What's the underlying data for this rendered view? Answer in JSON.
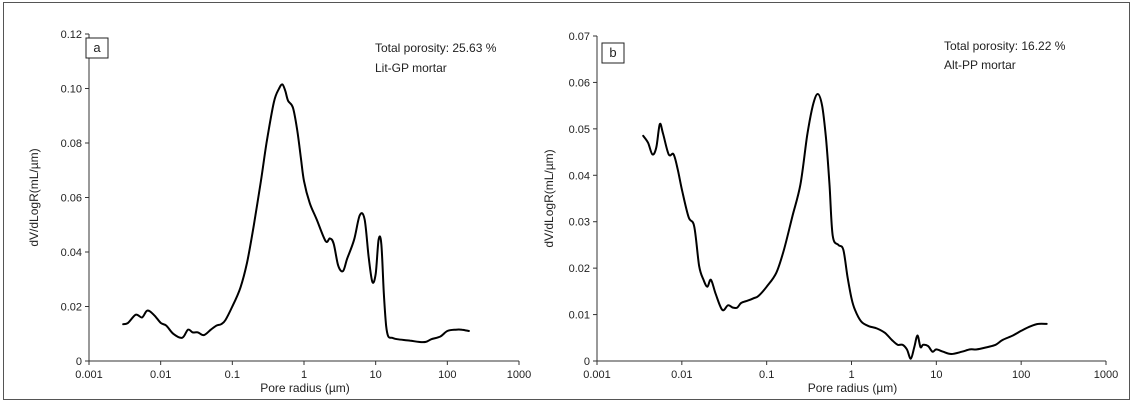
{
  "chart_data": [
    {
      "type": "line",
      "panel_label": "a",
      "annotation_line1": "Total porosity: 25.63 %",
      "annotation_line2": "Lit-GP mortar",
      "xlabel": "Pore radius (µm)",
      "ylabel": "dV/dLogR(mL/µm)",
      "x_scale": "log",
      "xlim": [
        0.001,
        1000
      ],
      "ylim": [
        0,
        0.12
      ],
      "x_ticks": [
        "0.001",
        "0.01",
        "0.1",
        "1",
        "10",
        "100",
        "1000"
      ],
      "y_ticks": [
        "0",
        "0.02",
        "0.04",
        "0.06",
        "0.08",
        "0.10",
        "0.12"
      ],
      "grid": false,
      "legend": "none",
      "line_color": "#000000",
      "series": [
        {
          "x": [
            0.003,
            0.0035,
            0.0045,
            0.0055,
            0.0065,
            0.008,
            0.01,
            0.012,
            0.015,
            0.02,
            0.024,
            0.028,
            0.033,
            0.04,
            0.05,
            0.06,
            0.07,
            0.08,
            0.1,
            0.13,
            0.16,
            0.2,
            0.25,
            0.3,
            0.38,
            0.45,
            0.5,
            0.55,
            0.6,
            0.7,
            0.8,
            0.9,
            1.0,
            1.2,
            1.5,
            2.0,
            2.3,
            2.6,
            3.0,
            3.5,
            4.0,
            5.0,
            6.0,
            7.0,
            8.0,
            9.0,
            10.0,
            11.0,
            12.0,
            13.0,
            14.0,
            15.0,
            17.0,
            20.0,
            30.0,
            40.0,
            50.0,
            60.0,
            80.0,
            100.0,
            130.0,
            160.0,
            200.0
          ],
          "y": [
            0.0135,
            0.014,
            0.017,
            0.016,
            0.0185,
            0.017,
            0.014,
            0.013,
            0.01,
            0.0085,
            0.0115,
            0.0105,
            0.0105,
            0.0095,
            0.0115,
            0.013,
            0.0135,
            0.015,
            0.02,
            0.027,
            0.036,
            0.05,
            0.066,
            0.08,
            0.095,
            0.1,
            0.1015,
            0.099,
            0.0955,
            0.093,
            0.085,
            0.075,
            0.066,
            0.058,
            0.052,
            0.044,
            0.045,
            0.043,
            0.035,
            0.033,
            0.0375,
            0.0445,
            0.0535,
            0.052,
            0.038,
            0.029,
            0.032,
            0.0445,
            0.043,
            0.025,
            0.013,
            0.009,
            0.0085,
            0.008,
            0.0075,
            0.007,
            0.007,
            0.008,
            0.009,
            0.011,
            0.0115,
            0.0115,
            0.011
          ]
        }
      ]
    },
    {
      "type": "line",
      "panel_label": "b",
      "annotation_line1": "Total porosity: 16.22 %",
      "annotation_line2": "Alt-PP mortar",
      "xlabel": "Pore radius (µm)",
      "ylabel": "dV/dLogR(mL/µm)",
      "x_scale": "log",
      "xlim": [
        0.001,
        1000
      ],
      "ylim": [
        0,
        0.07
      ],
      "x_ticks": [
        "0.001",
        "0.01",
        "0.1",
        "1",
        "10",
        "100",
        "1000"
      ],
      "y_ticks": [
        "0",
        "0.01",
        "0.02",
        "0.03",
        "0.04",
        "0.05",
        "0.06",
        "0.07"
      ],
      "grid": false,
      "legend": "none",
      "line_color": "#000000",
      "series": [
        {
          "x": [
            0.0035,
            0.004,
            0.0045,
            0.005,
            0.0055,
            0.006,
            0.007,
            0.008,
            0.009,
            0.01,
            0.012,
            0.014,
            0.016,
            0.018,
            0.02,
            0.022,
            0.025,
            0.03,
            0.035,
            0.04,
            0.045,
            0.05,
            0.06,
            0.07,
            0.08,
            0.1,
            0.13,
            0.16,
            0.2,
            0.25,
            0.3,
            0.35,
            0.4,
            0.45,
            0.5,
            0.55,
            0.6,
            0.7,
            0.8,
            0.9,
            1.0,
            1.1,
            1.3,
            1.6,
            2.0,
            2.5,
            3.0,
            3.5,
            4.0,
            4.5,
            5.0,
            5.5,
            6.0,
            6.5,
            7.0,
            8.0,
            9.0,
            10.0,
            12.0,
            15.0,
            20.0,
            25.0,
            30.0,
            40.0,
            50.0,
            60.0,
            80.0,
            100.0,
            130.0,
            160.0,
            200.0
          ],
          "y": [
            0.0485,
            0.047,
            0.0445,
            0.046,
            0.051,
            0.049,
            0.0445,
            0.0445,
            0.041,
            0.037,
            0.031,
            0.029,
            0.0205,
            0.0175,
            0.016,
            0.0175,
            0.0145,
            0.011,
            0.012,
            0.0115,
            0.0115,
            0.0125,
            0.013,
            0.0135,
            0.014,
            0.016,
            0.019,
            0.024,
            0.031,
            0.038,
            0.0485,
            0.055,
            0.0575,
            0.055,
            0.048,
            0.038,
            0.027,
            0.025,
            0.024,
            0.018,
            0.0135,
            0.011,
            0.0085,
            0.0075,
            0.007,
            0.006,
            0.0045,
            0.0035,
            0.0035,
            0.0025,
            0.0005,
            0.003,
            0.0055,
            0.003,
            0.0035,
            0.0032,
            0.002,
            0.0025,
            0.002,
            0.0015,
            0.002,
            0.0025,
            0.0025,
            0.003,
            0.0035,
            0.0045,
            0.0055,
            0.0065,
            0.0075,
            0.008,
            0.008
          ]
        }
      ]
    }
  ]
}
